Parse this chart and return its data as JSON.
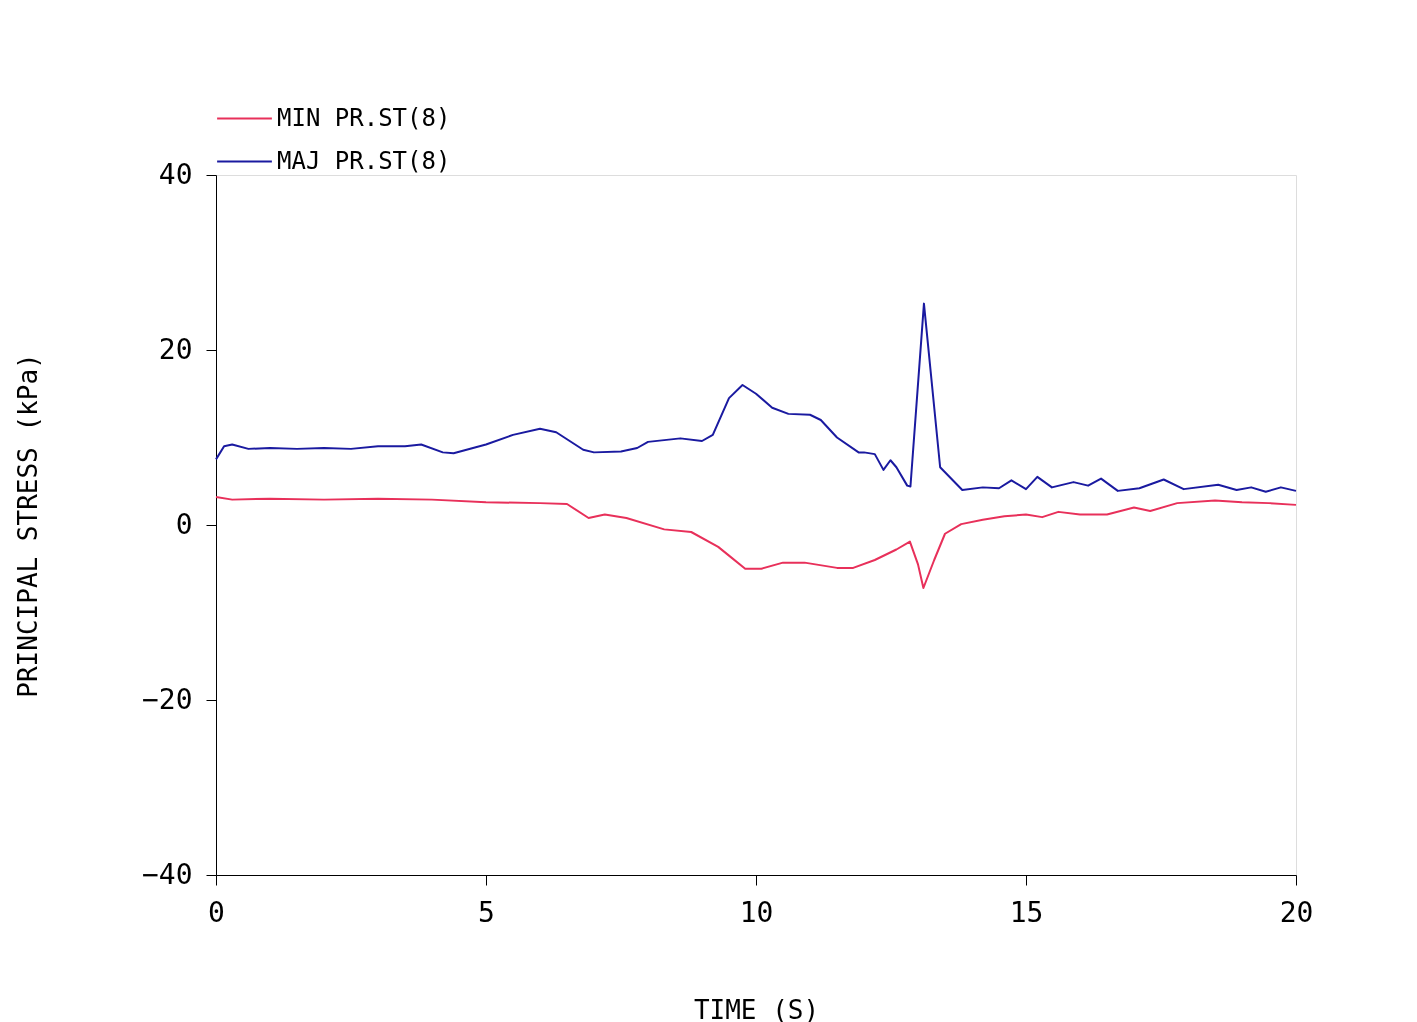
{
  "chart_data": {
    "type": "line",
    "xlabel": "TIME (S)",
    "ylabel": "PRINCIPAL STRESS (kPa)",
    "xlim": [
      0,
      20
    ],
    "xticks": [
      0,
      5,
      10,
      15,
      20
    ],
    "ylim": [
      -40,
      40
    ],
    "yticks": [
      -40,
      -20,
      0,
      20,
      40
    ],
    "grid": false,
    "legend": "top left",
    "line_style": "solid",
    "marker": "none",
    "series": [
      {
        "name": "MIN PR.ST(8)",
        "color": "#e8305a",
        "x": [
          0,
          0.3,
          1,
          2,
          3,
          4,
          5,
          6,
          6.5,
          6.9,
          7.2,
          7.6,
          8.3,
          8.8,
          9.3,
          9.5,
          9.8,
          10.1,
          10.5,
          10.9,
          11.5,
          11.8,
          12.2,
          12.6,
          12.85,
          13.0,
          13.1,
          13.3,
          13.5,
          13.8,
          14.2,
          14.6,
          15.0,
          15.3,
          15.6,
          16.0,
          16.5,
          17.0,
          17.3,
          17.8,
          18.5,
          19.0,
          19.5,
          20
        ],
        "values": [
          3.2,
          2.9,
          3.0,
          2.9,
          3.0,
          2.9,
          2.6,
          2.5,
          2.4,
          0.8,
          1.2,
          0.8,
          -0.5,
          -0.8,
          -2.5,
          -3.5,
          -5.0,
          -5.0,
          -4.3,
          -4.3,
          -4.9,
          -4.9,
          -4.0,
          -2.8,
          -1.9,
          -4.5,
          -7.2,
          -4.0,
          -1.0,
          0.1,
          0.6,
          1.0,
          1.2,
          0.9,
          1.5,
          1.2,
          1.2,
          2.0,
          1.6,
          2.5,
          2.8,
          2.6,
          2.5,
          2.3
        ]
      },
      {
        "name": "MAJ PR.ST(8)",
        "color": "#1a1aa0",
        "x": [
          0,
          0.15,
          0.3,
          0.6,
          1,
          1.5,
          2,
          2.5,
          3,
          3.5,
          3.8,
          4.2,
          4.4,
          5,
          5.5,
          6,
          6.3,
          6.8,
          7,
          7.5,
          7.8,
          8,
          8.6,
          9,
          9.2,
          9.5,
          9.75,
          10.0,
          10.3,
          10.6,
          11.0,
          11.2,
          11.5,
          11.9,
          12.0,
          12.2,
          12.36,
          12.49,
          12.6,
          12.8,
          12.86,
          13.11,
          13.41,
          13.82,
          14.2,
          14.5,
          14.73,
          15.0,
          15.21,
          15.48,
          15.88,
          16.15,
          16.39,
          16.7,
          17.1,
          17.55,
          17.92,
          18.56,
          18.9,
          19.17,
          19.44,
          19.72,
          20
        ],
        "values": [
          7.5,
          9.0,
          9.2,
          8.7,
          8.8,
          8.7,
          8.8,
          8.7,
          9.0,
          9.0,
          9.2,
          8.3,
          8.2,
          9.2,
          10.3,
          11.0,
          10.6,
          8.6,
          8.3,
          8.4,
          8.8,
          9.5,
          9.9,
          9.6,
          10.3,
          14.5,
          16.0,
          15.0,
          13.4,
          12.7,
          12.6,
          12.0,
          10.0,
          8.3,
          8.3,
          8.1,
          6.3,
          7.4,
          6.6,
          4.5,
          4.4,
          25.3,
          6.6,
          4.0,
          4.3,
          4.2,
          5.1,
          4.1,
          5.5,
          4.3,
          4.9,
          4.5,
          5.3,
          3.9,
          4.2,
          5.2,
          4.1,
          4.6,
          4.0,
          4.3,
          3.8,
          4.3,
          3.9
        ]
      }
    ]
  }
}
